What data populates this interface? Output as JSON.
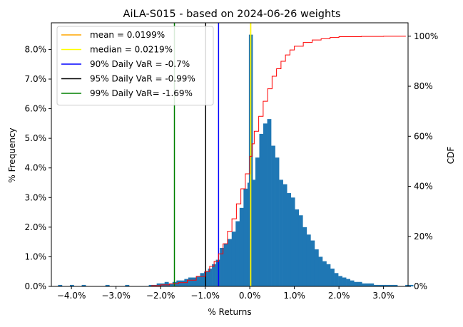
{
  "chart_data": {
    "type": "histogram",
    "title": "AiLA-S015 - based on 2024-06-26 weights",
    "xlabel": "% Returns",
    "ylabel": "% Frequency",
    "y2label": "CDF",
    "xlim": [
      -4.45,
      3.55
    ],
    "ylim": [
      0,
      8.9
    ],
    "y2lim": [
      0,
      1.0536
    ],
    "x_ticks": [
      -4,
      -3,
      -2,
      -1,
      0,
      1,
      2,
      3
    ],
    "x_tick_labels": [
      "−4.0%",
      "−3.0%",
      "−2.0%",
      "−1.0%",
      "0.0%",
      "1.0%",
      "2.0%",
      "3.0%"
    ],
    "y_ticks": [
      0,
      1,
      2,
      3,
      4,
      5,
      6,
      7,
      8
    ],
    "y_tick_labels": [
      "0.0%",
      "1.0%",
      "2.0%",
      "3.0%",
      "4.0%",
      "5.0%",
      "6.0%",
      "7.0%",
      "8.0%"
    ],
    "y2_ticks": [
      0,
      0.2,
      0.4,
      0.6,
      0.8,
      1.0
    ],
    "y2_tick_labels": [
      "0%",
      "20%",
      "40%",
      "60%",
      "80%",
      "100%"
    ],
    "grid": false,
    "legend_position": "top-left",
    "bar_color": "#1f77b4",
    "cdf_color": "#ff0000",
    "histogram": {
      "bin_start": -4.3,
      "bin_width": 0.0885,
      "frequencies": [
        0.05,
        0,
        0,
        0.05,
        0,
        0,
        0.05,
        0,
        0,
        0,
        0,
        0,
        0.05,
        0,
        0,
        0,
        0,
        0.05,
        0,
        0,
        0,
        0,
        0,
        0.05,
        0.05,
        0.1,
        0.1,
        0.15,
        0.1,
        0.15,
        0.2,
        0.2,
        0.25,
        0.3,
        0.3,
        0.35,
        0.45,
        0.5,
        0.6,
        0.75,
        0.9,
        1.3,
        1.45,
        1.6,
        1.85,
        2.2,
        2.65,
        3.3,
        3.5,
        3.6,
        4.35,
        5.15,
        5.5,
        5.65,
        4.75,
        4.35,
        3.6,
        3.45,
        3.15,
        3.0,
        2.6,
        2.4,
        2.0,
        1.75,
        1.55,
        1.25,
        1.0,
        0.85,
        0.75,
        0.6,
        0.45,
        0.35,
        0.3,
        0.25,
        0.2,
        0.15,
        0.15,
        0.1,
        0.1,
        0.1,
        0.05,
        0.05,
        0.05,
        0.05,
        0.05,
        0.05,
        0,
        0,
        0.05,
        0.05
      ]
    },
    "spike": {
      "x": -0.02,
      "width": 0.0885,
      "value": 8.5
    },
    "reference_lines": [
      {
        "label": "mean = 0.0199%",
        "x": 0.0199,
        "color": "#ffa500"
      },
      {
        "label": "median = 0.0219%",
        "x": 0.0219,
        "color": "#ffff00"
      },
      {
        "label": "90% Daily VaR = -0.7%",
        "x": -0.7,
        "color": "#0000ff"
      },
      {
        "label": "95% Daily VaR = -0.99%",
        "x": -0.99,
        "color": "#000000"
      },
      {
        "label": "99% Daily VaR= -1.69%",
        "x": -1.69,
        "color": "#008000"
      }
    ],
    "cdf": {
      "x": [
        -4.3,
        -2.5,
        -2.2,
        -2.0,
        -1.8,
        -1.6,
        -1.4,
        -1.2,
        -1.0,
        -0.9,
        -0.8,
        -0.7,
        -0.6,
        -0.5,
        -0.4,
        -0.3,
        -0.2,
        -0.1,
        0.0,
        0.05,
        0.1,
        0.2,
        0.3,
        0.4,
        0.5,
        0.6,
        0.7,
        0.8,
        0.9,
        1.0,
        1.2,
        1.4,
        1.6,
        1.8,
        2.0,
        2.5,
        3.0,
        3.5
      ],
      "y": [
        0,
        0,
        0.003,
        0.006,
        0.01,
        0.015,
        0.025,
        0.04,
        0.06,
        0.08,
        0.1,
        0.13,
        0.17,
        0.22,
        0.27,
        0.33,
        0.39,
        0.45,
        0.52,
        0.57,
        0.62,
        0.68,
        0.74,
        0.79,
        0.84,
        0.87,
        0.9,
        0.925,
        0.945,
        0.96,
        0.975,
        0.985,
        0.99,
        0.995,
        0.998,
        0.999,
        1.0,
        1.0
      ]
    }
  }
}
